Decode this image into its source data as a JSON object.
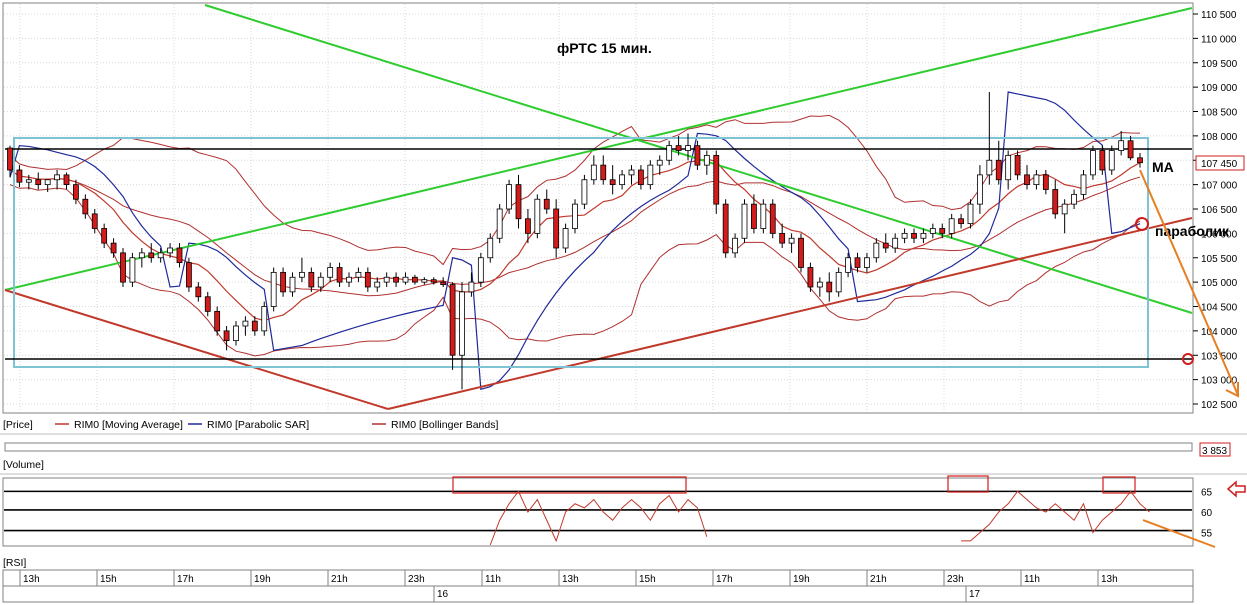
{
  "title": "фРТС   15 мин.",
  "panels": {
    "price": "[Price]",
    "volume": "[Volume]",
    "rsi": "[RSI]"
  },
  "legend": [
    {
      "label": "RIM0 [Moving Average]",
      "color": "#c0392b"
    },
    {
      "label": "RIM0 [Parabolic SAR]",
      "color": "#1f2a9a"
    },
    {
      "label": "RIM0 [Bollinger Bands]",
      "color": "#b03030"
    }
  ],
  "annotations": {
    "ma": "МА",
    "parabolic": "параболик"
  },
  "current_price_label": "107 450",
  "volume_label": "3 853",
  "colors": {
    "up": "#ffffff",
    "down": "#d21c1c",
    "wick": "#000000",
    "ma": "#c0392b",
    "sar": "#1f2a9a",
    "bb": "#b03030",
    "green_line": "#2ecc2e",
    "support_line": "#c0392b",
    "box": "#7fc4d4",
    "arrow": "#e67e22"
  },
  "chart_data": {
    "type": "candlestick",
    "instrument": "RIM0",
    "timeframe": "15 мин.",
    "price_axis": {
      "ticks": [
        "102 500",
        "103 000",
        "103 500",
        "104 000",
        "104 500",
        "105 000",
        "105 500",
        "106 000",
        "106 500",
        "107 000",
        "107 500",
        "108 000",
        "108 500",
        "109 000",
        "109 500",
        "110 000",
        "110 500"
      ],
      "range": [
        102500,
        110500
      ]
    },
    "rsi_axis": {
      "ticks": [
        "55",
        "60",
        "65"
      ],
      "range": [
        52,
        68
      ]
    },
    "time_axis": {
      "labels": [
        "13h",
        "15h",
        "17h",
        "19h",
        "21h",
        "23h",
        "11h",
        "13h",
        "15h",
        "17h",
        "19h",
        "21h",
        "23h",
        "11h",
        "13h"
      ],
      "days": [
        "16",
        "17"
      ]
    },
    "levels": [
      107750,
      103450
    ],
    "candles": [
      [
        107750,
        107800,
        107150,
        107300
      ],
      [
        107300,
        107400,
        106950,
        107050
      ],
      [
        107050,
        107200,
        106900,
        107100
      ],
      [
        107100,
        107250,
        106900,
        107000
      ],
      [
        107000,
        107100,
        106850,
        107100
      ],
      [
        107100,
        107300,
        106900,
        107200
      ],
      [
        107200,
        107250,
        106900,
        107000
      ],
      [
        107000,
        107100,
        106600,
        106700
      ],
      [
        106700,
        106800,
        106300,
        106400
      ],
      [
        106400,
        106500,
        106000,
        106100
      ],
      [
        106100,
        106200,
        105700,
        105800
      ],
      [
        105800,
        105900,
        105500,
        105600
      ],
      [
        105600,
        105700,
        104900,
        105000
      ],
      [
        105000,
        105600,
        104900,
        105500
      ],
      [
        105500,
        105700,
        105300,
        105600
      ],
      [
        105600,
        105800,
        105400,
        105500
      ],
      [
        105500,
        105700,
        105400,
        105600
      ],
      [
        105600,
        105800,
        105500,
        105700
      ],
      [
        105700,
        105800,
        105300,
        105400
      ],
      [
        105400,
        105500,
        104800,
        104900
      ],
      [
        104900,
        105000,
        104600,
        104700
      ],
      [
        104700,
        104800,
        104300,
        104400
      ],
      [
        104400,
        104500,
        103900,
        104000
      ],
      [
        104000,
        104100,
        103600,
        103800
      ],
      [
        103800,
        104200,
        103700,
        104100
      ],
      [
        104100,
        104300,
        103900,
        104200
      ],
      [
        104200,
        104300,
        103900,
        104000
      ],
      [
        104000,
        104600,
        103900,
        104500
      ],
      [
        104500,
        105300,
        104400,
        105200
      ],
      [
        105200,
        105300,
        104700,
        104800
      ],
      [
        104800,
        105200,
        104700,
        105100
      ],
      [
        105100,
        105500,
        105000,
        105200
      ],
      [
        105200,
        105300,
        104800,
        104900
      ],
      [
        104900,
        105200,
        104800,
        105100
      ],
      [
        105100,
        105400,
        105000,
        105300
      ],
      [
        105300,
        105400,
        104900,
        105000
      ],
      [
        105000,
        105200,
        104900,
        105100
      ],
      [
        105100,
        105300,
        105000,
        105200
      ],
      [
        105200,
        105300,
        104800,
        104900
      ],
      [
        104900,
        105100,
        104800,
        105000
      ],
      [
        105000,
        105200,
        104900,
        105100
      ],
      [
        105100,
        105200,
        104900,
        105000
      ],
      [
        105000,
        105200,
        104950,
        105100
      ],
      [
        105100,
        105150,
        104950,
        105000
      ],
      [
        105000,
        105100,
        104950,
        105050
      ],
      [
        105050,
        105100,
        104950,
        105000
      ],
      [
        105000,
        105100,
        104900,
        104950
      ],
      [
        104950,
        105000,
        103200,
        103500
      ],
      [
        103500,
        105000,
        102800,
        104800
      ],
      [
        104800,
        105200,
        104700,
        105000
      ],
      [
        105000,
        105600,
        104900,
        105500
      ],
      [
        105500,
        106000,
        105400,
        105900
      ],
      [
        105900,
        106600,
        105800,
        106500
      ],
      [
        106500,
        107100,
        106400,
        107000
      ],
      [
        107000,
        107200,
        106100,
        106300
      ],
      [
        106300,
        106500,
        105800,
        106000
      ],
      [
        106000,
        106800,
        105900,
        106700
      ],
      [
        106700,
        106900,
        106400,
        106500
      ],
      [
        106500,
        106700,
        105500,
        105700
      ],
      [
        105700,
        106200,
        105600,
        106100
      ],
      [
        106100,
        106700,
        106000,
        106600
      ],
      [
        106600,
        107200,
        106500,
        107100
      ],
      [
        107100,
        107600,
        107000,
        107400
      ],
      [
        107400,
        107600,
        107000,
        107100
      ],
      [
        107100,
        107400,
        106800,
        107000
      ],
      [
        107000,
        107300,
        106900,
        107200
      ],
      [
        107200,
        107400,
        107000,
        107300
      ],
      [
        107300,
        107400,
        106900,
        107000
      ],
      [
        107000,
        107500,
        106900,
        107400
      ],
      [
        107400,
        107600,
        107200,
        107500
      ],
      [
        107500,
        107900,
        107400,
        107800
      ],
      [
        107800,
        108000,
        107600,
        107700
      ],
      [
        107700,
        108050,
        107500,
        107800
      ],
      [
        107800,
        107900,
        107300,
        107400
      ],
      [
        107400,
        107700,
        107200,
        107600
      ],
      [
        107600,
        107700,
        106400,
        106600
      ],
      [
        106600,
        106700,
        105500,
        105600
      ],
      [
        105600,
        106000,
        105500,
        105900
      ],
      [
        105900,
        106700,
        105800,
        106600
      ],
      [
        106600,
        106800,
        106000,
        106100
      ],
      [
        106100,
        106700,
        106000,
        106600
      ],
      [
        106600,
        106700,
        105900,
        106000
      ],
      [
        106000,
        106200,
        105700,
        105800
      ],
      [
        105800,
        106000,
        105600,
        105900
      ],
      [
        105900,
        106000,
        105200,
        105300
      ],
      [
        105300,
        105400,
        104800,
        104900
      ],
      [
        104900,
        105100,
        104700,
        105000
      ],
      [
        105000,
        105200,
        104600,
        104800
      ],
      [
        104800,
        105300,
        104700,
        105200
      ],
      [
        105200,
        105600,
        105100,
        105500
      ],
      [
        105500,
        105600,
        105200,
        105300
      ],
      [
        105300,
        105600,
        105200,
        105500
      ],
      [
        105500,
        105900,
        105400,
        105800
      ],
      [
        105800,
        106000,
        105600,
        105700
      ],
      [
        105700,
        106000,
        105600,
        105900
      ],
      [
        105900,
        106100,
        105800,
        106000
      ],
      [
        106000,
        106100,
        105800,
        105900
      ],
      [
        105900,
        106100,
        105800,
        106000
      ],
      [
        106000,
        106200,
        105900,
        106100
      ],
      [
        106100,
        106200,
        105900,
        106000
      ],
      [
        106000,
        106400,
        105900,
        106300
      ],
      [
        106300,
        106400,
        106100,
        106200
      ],
      [
        106200,
        106700,
        106100,
        106600
      ],
      [
        106600,
        107400,
        106400,
        107200
      ],
      [
        107200,
        108900,
        107000,
        107500
      ],
      [
        107500,
        107900,
        107000,
        107100
      ],
      [
        107100,
        107700,
        106900,
        107600
      ],
      [
        107600,
        107700,
        107100,
        107200
      ],
      [
        107200,
        107400,
        106900,
        107000
      ],
      [
        107000,
        107300,
        106900,
        107200
      ],
      [
        107200,
        107300,
        106800,
        106900
      ],
      [
        106900,
        107100,
        106300,
        106400
      ],
      [
        106400,
        106700,
        106000,
        106600
      ],
      [
        106600,
        106900,
        106500,
        106800
      ],
      [
        106800,
        107300,
        106700,
        107200
      ],
      [
        107200,
        107800,
        107100,
        107700
      ],
      [
        107700,
        107800,
        107200,
        107300
      ],
      [
        107300,
        107800,
        107200,
        107700
      ],
      [
        107700,
        108100,
        107600,
        107900
      ],
      [
        107900,
        108000,
        107500,
        107550
      ],
      [
        107550,
        107650,
        107350,
        107450
      ]
    ],
    "rsi": [
      null,
      null,
      null,
      null,
      null,
      null,
      null,
      null,
      null,
      null,
      null,
      null,
      null,
      null,
      null,
      null,
      null,
      null,
      null,
      null,
      null,
      null,
      null,
      null,
      null,
      null,
      null,
      null,
      null,
      null,
      null,
      null,
      null,
      null,
      null,
      null,
      null,
      null,
      null,
      null,
      null,
      null,
      null,
      null,
      null,
      null,
      null,
      null,
      null,
      null,
      null,
      52,
      58,
      62,
      65,
      60,
      63,
      58,
      53,
      60,
      62,
      61,
      63,
      60,
      58,
      61,
      63,
      61,
      58,
      62,
      64,
      60,
      63,
      61,
      54,
      null,
      null,
      null,
      null,
      null,
      null,
      null,
      null,
      null,
      null,
      null,
      null,
      null,
      null,
      null,
      null,
      null,
      null,
      null,
      null,
      null,
      null,
      null,
      null,
      null,
      null,
      53,
      53,
      55,
      57,
      60,
      62,
      65,
      63,
      61,
      60,
      62,
      60,
      58,
      62,
      55,
      58,
      60,
      62,
      65,
      62,
      60
    ],
    "rsi_levels": [
      65,
      60.5,
      55.5
    ]
  }
}
